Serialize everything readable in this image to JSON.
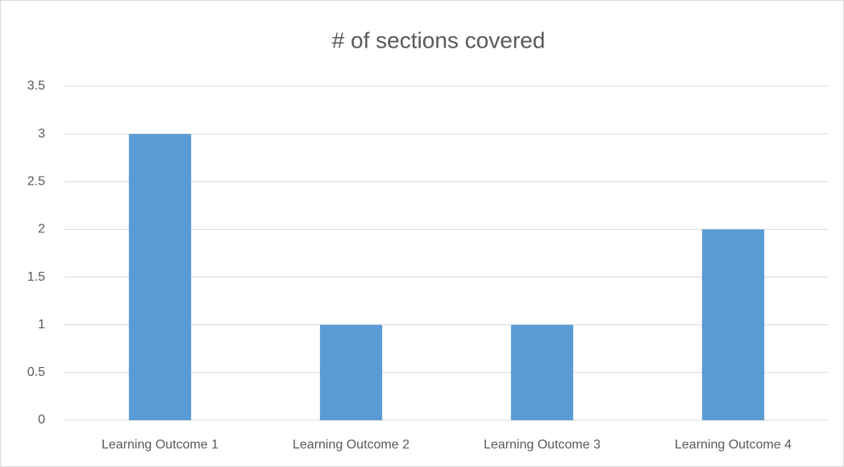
{
  "chart_data": {
    "type": "bar",
    "title": "# of sections covered",
    "categories": [
      "Learning Outcome 1",
      "Learning Outcome 2",
      "Learning Outcome 3",
      "Learning Outcome 4"
    ],
    "values": [
      3,
      1,
      1,
      2
    ],
    "color": "#5b9bd5",
    "ylim": [
      0,
      3.5
    ],
    "yticks": [
      0,
      0.5,
      1,
      1.5,
      2,
      2.5,
      3,
      3.5
    ],
    "grid": true
  }
}
